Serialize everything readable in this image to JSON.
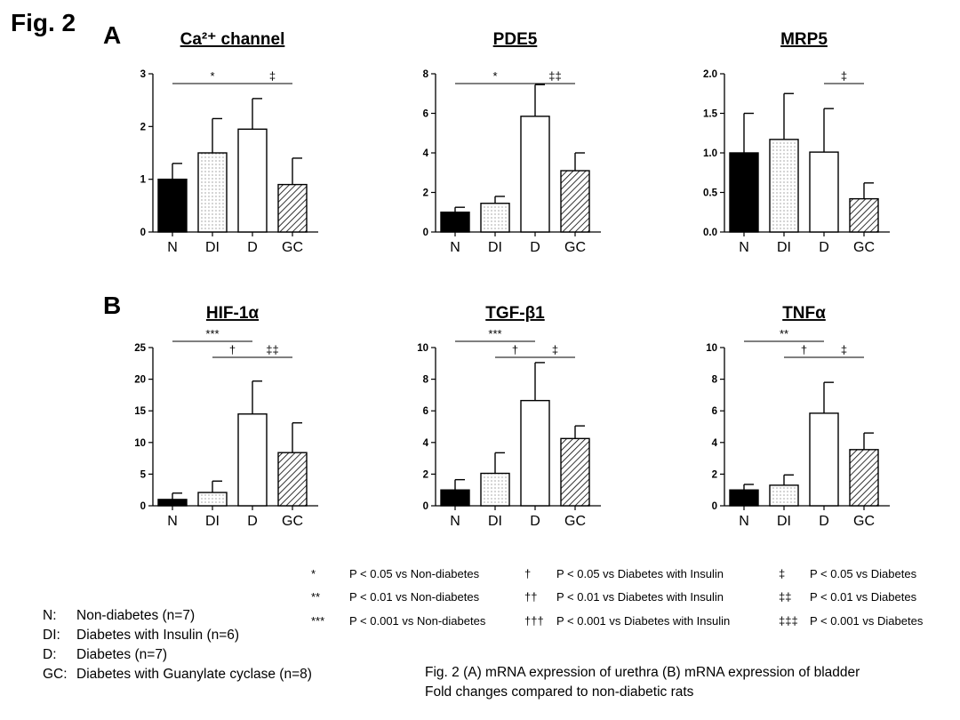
{
  "figure_label": "Fig. 2",
  "panels": {
    "a": "A",
    "b": "B"
  },
  "colors": {
    "N": "#000000",
    "DI": "#ffffff",
    "D": "#ffffff",
    "GC": "#ffffff"
  },
  "patterns": {
    "N": "solid",
    "DI": "dotted",
    "D": "open",
    "GC": "diagonal-hatch"
  },
  "chart_data": [
    {
      "type": "bar",
      "title": "Ca²⁺ channel",
      "categories": [
        "N",
        "DI",
        "D",
        "GC"
      ],
      "values": [
        1.0,
        1.5,
        1.95,
        0.9
      ],
      "errors": [
        0.3,
        0.65,
        0.58,
        0.5
      ],
      "ylim": [
        0,
        3
      ],
      "yticks": [
        "0",
        "1",
        "2",
        "3"
      ],
      "sig": [
        {
          "from": 0,
          "to": 2,
          "label": "*"
        },
        {
          "from": 2,
          "to": 3,
          "label": "‡"
        }
      ]
    },
    {
      "type": "bar",
      "title": "PDE5",
      "categories": [
        "N",
        "DI",
        "D",
        "GC"
      ],
      "values": [
        1.0,
        1.45,
        5.85,
        3.1
      ],
      "errors": [
        0.25,
        0.35,
        1.6,
        0.9
      ],
      "ylim": [
        0,
        8
      ],
      "yticks": [
        "0",
        "2",
        "4",
        "6",
        "8"
      ],
      "sig": [
        {
          "from": 0,
          "to": 2,
          "label": "*"
        },
        {
          "from": 2,
          "to": 3,
          "label": "‡‡"
        }
      ]
    },
    {
      "type": "bar",
      "title": "MRP5",
      "categories": [
        "N",
        "DI",
        "D",
        "GC"
      ],
      "values": [
        1.0,
        1.17,
        1.01,
        0.42
      ],
      "errors": [
        0.5,
        0.58,
        0.55,
        0.2
      ],
      "ylim": [
        0,
        2
      ],
      "yticks": [
        "0.0",
        "0.5",
        "1.0",
        "1.5",
        "2.0"
      ],
      "sig": [
        {
          "from": 2,
          "to": 3,
          "label": "‡"
        }
      ]
    },
    {
      "type": "bar",
      "title": "HIF-1α",
      "categories": [
        "N",
        "DI",
        "D",
        "GC"
      ],
      "values": [
        1.0,
        2.1,
        14.5,
        8.4
      ],
      "errors": [
        1.0,
        1.8,
        5.2,
        4.7
      ],
      "ylim": [
        0,
        25
      ],
      "yticks": [
        "0",
        "5",
        "10",
        "15",
        "20",
        "25"
      ],
      "sig": [
        {
          "from": 0,
          "to": 2,
          "label": "***",
          "level": 2
        },
        {
          "from": 1,
          "to": 2,
          "label": "†"
        },
        {
          "from": 2,
          "to": 3,
          "label": "‡‡"
        }
      ]
    },
    {
      "type": "bar",
      "title": "TGF-β1",
      "categories": [
        "N",
        "DI",
        "D",
        "GC"
      ],
      "values": [
        1.0,
        2.05,
        6.65,
        4.25
      ],
      "errors": [
        0.65,
        1.3,
        2.4,
        0.8
      ],
      "ylim": [
        0,
        10
      ],
      "yticks": [
        "0",
        "2",
        "4",
        "6",
        "8",
        "10"
      ],
      "sig": [
        {
          "from": 0,
          "to": 2,
          "label": "***",
          "level": 2
        },
        {
          "from": 1,
          "to": 2,
          "label": "†"
        },
        {
          "from": 2,
          "to": 3,
          "label": "‡"
        }
      ]
    },
    {
      "type": "bar",
      "title": "TNFα",
      "categories": [
        "N",
        "DI",
        "D",
        "GC"
      ],
      "values": [
        1.0,
        1.3,
        5.85,
        3.55
      ],
      "errors": [
        0.35,
        0.65,
        1.95,
        1.05
      ],
      "ylim": [
        0,
        10
      ],
      "yticks": [
        "0",
        "2",
        "4",
        "6",
        "8",
        "10"
      ],
      "sig": [
        {
          "from": 0,
          "to": 2,
          "label": "**",
          "level": 2
        },
        {
          "from": 1,
          "to": 2,
          "label": "†"
        },
        {
          "from": 2,
          "to": 3,
          "label": "‡"
        }
      ]
    }
  ],
  "legend": [
    [
      {
        "sym": "*",
        "text": "P < 0.05 vs Non-diabetes"
      },
      {
        "sym": "†",
        "text": "P < 0.05 vs Diabetes with Insulin"
      },
      {
        "sym": "‡",
        "text": "P < 0.05 vs Diabetes"
      }
    ],
    [
      {
        "sym": "**",
        "text": "P < 0.01 vs Non-diabetes"
      },
      {
        "sym": "††",
        "text": "P < 0.01 vs Diabetes with Insulin"
      },
      {
        "sym": "‡‡",
        "text": "P < 0.01 vs Diabetes"
      }
    ],
    [
      {
        "sym": "***",
        "text": "P < 0.001 vs Non-diabetes"
      },
      {
        "sym": "†††",
        "text": "P < 0.001 vs Diabetes with Insulin"
      },
      {
        "sym": "‡‡‡",
        "text": "P < 0.001 vs Diabetes"
      }
    ]
  ],
  "group_key": [
    {
      "abbr": "N:",
      "desc": "Non-diabetes (n=7)"
    },
    {
      "abbr": "DI:",
      "desc": "Diabetes with Insulin  (n=6)"
    },
    {
      "abbr": "D:",
      "desc": "Diabetes (n=7)"
    },
    {
      "abbr": "GC:",
      "desc": "Diabetes with Guanylate  cyclase (n=8)"
    }
  ],
  "caption": [
    "Fig. 2 (A) mRNA expression of urethra  (B) mRNA expression of bladder",
    "Fold changes compared to non-diabetic rats"
  ]
}
